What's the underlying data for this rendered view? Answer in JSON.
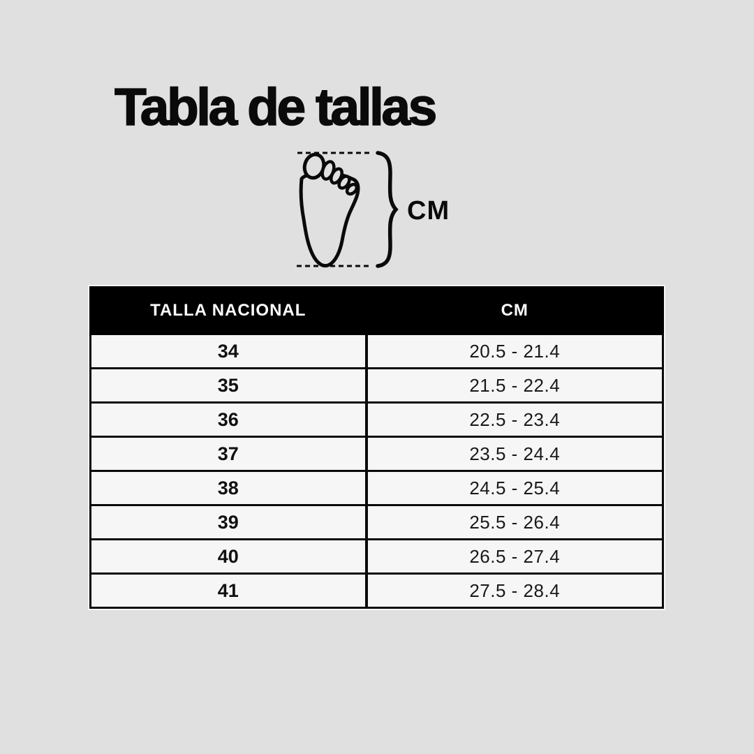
{
  "title": "Tabla de tallas",
  "illustration": {
    "unit_label": "CM",
    "icon": "footprint-icon"
  },
  "colors": {
    "page_background": "#e0e0e0",
    "table_header_background": "#000000",
    "table_header_text": "#ffffff",
    "cell_background": "#f7f6f7",
    "border": "#0a0a0a",
    "title_text": "#0a0a0a"
  },
  "table": {
    "headers": [
      "TALLA NACIONAL",
      "CM"
    ],
    "rows": [
      {
        "talla": "34",
        "cm": "20.5 - 21.4"
      },
      {
        "talla": "35",
        "cm": "21.5 - 22.4"
      },
      {
        "talla": "36",
        "cm": "22.5 - 23.4"
      },
      {
        "talla": "37",
        "cm": "23.5 - 24.4"
      },
      {
        "talla": "38",
        "cm": "24.5 - 25.4"
      },
      {
        "talla": "39",
        "cm": "25.5 - 26.4"
      },
      {
        "talla": "40",
        "cm": "26.5 - 27.4"
      },
      {
        "talla": "41",
        "cm": "27.5 - 28.4"
      }
    ]
  },
  "chart_data": {
    "type": "table",
    "title": "Tabla de tallas",
    "columns": [
      "TALLA NACIONAL",
      "CM"
    ],
    "rows": [
      [
        "34",
        "20.5 - 21.4"
      ],
      [
        "35",
        "21.5 - 22.4"
      ],
      [
        "36",
        "22.5 - 23.4"
      ],
      [
        "37",
        "23.5 - 24.4"
      ],
      [
        "38",
        "24.5 - 25.4"
      ],
      [
        "39",
        "25.5 - 26.4"
      ],
      [
        "40",
        "26.5 - 27.4"
      ],
      [
        "41",
        "27.5 - 28.4"
      ]
    ]
  }
}
